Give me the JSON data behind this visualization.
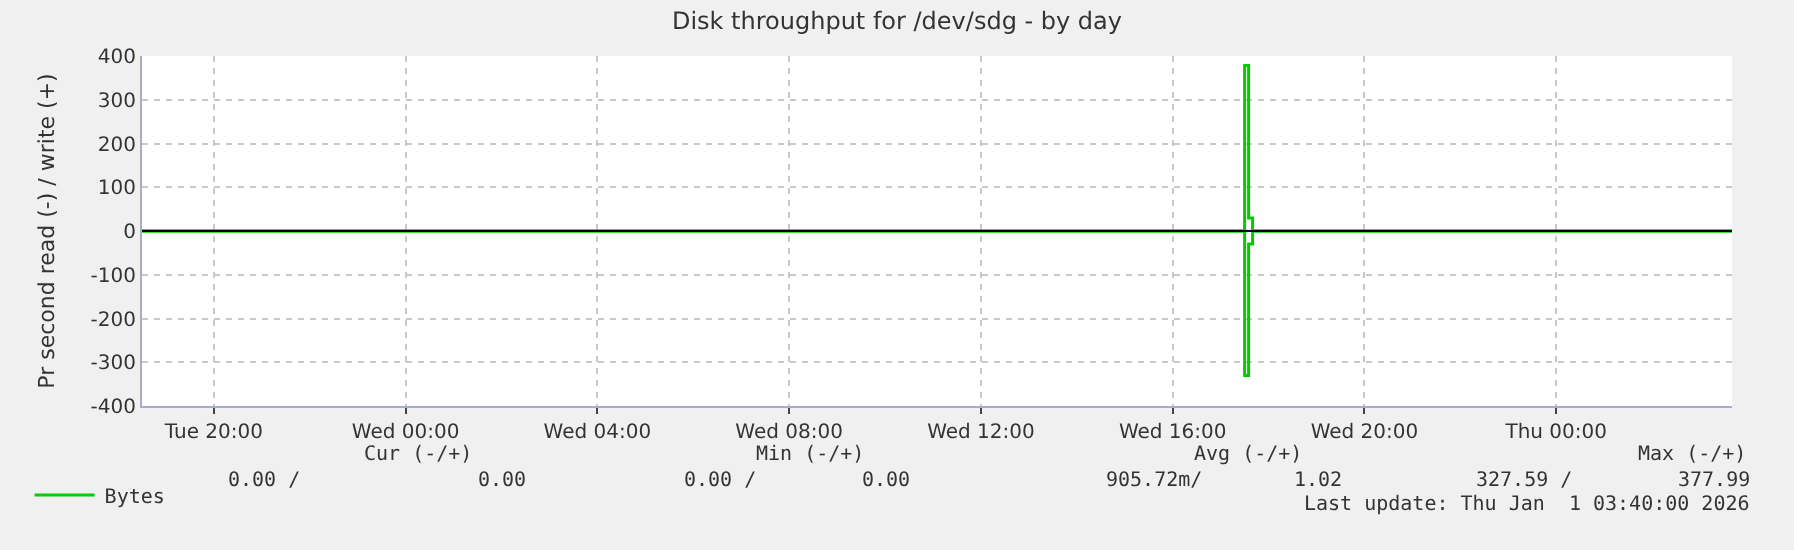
{
  "chart_data": {
    "type": "step",
    "title": "Disk throughput for /dev/sdg - by day",
    "ylabel": "Pr second read (-) / write (+)",
    "xlim": [
      "2025-12-30T18:30",
      "2026-01-01T03:40"
    ],
    "xticks": [
      {
        "value": "2025-12-30T20:00",
        "label": "Tue 20:00"
      },
      {
        "value": "2025-12-31T00:00",
        "label": "Wed 00:00"
      },
      {
        "value": "2025-12-31T04:00",
        "label": "Wed 04:00"
      },
      {
        "value": "2025-12-31T08:00",
        "label": "Wed 08:00"
      },
      {
        "value": "2025-12-31T12:00",
        "label": "Wed 12:00"
      },
      {
        "value": "2025-12-31T16:00",
        "label": "Wed 16:00"
      },
      {
        "value": "2025-12-31T20:00",
        "label": "Wed 20:00"
      },
      {
        "value": "2026-01-01T00:00",
        "label": "Thu 00:00"
      }
    ],
    "ylim": [
      -400,
      400
    ],
    "yticks": [
      -400,
      -300,
      -200,
      -100,
      0,
      100,
      200,
      300,
      400
    ],
    "series": [
      {
        "name": "Bytes",
        "color": "#00cc00",
        "x": [
          "2025-12-30T18:30",
          "2025-12-31T17:25",
          "2025-12-31T17:30",
          "2025-12-31T17:35",
          "2025-12-31T17:40",
          "2026-01-01T03:40"
        ],
        "values": [
          0,
          0,
          378,
          30,
          0,
          0
        ]
      },
      {
        "color": "#00cc00",
        "x": [
          "2025-12-30T18:30",
          "2025-12-31T17:25",
          "2025-12-31T17:30",
          "2025-12-31T17:35",
          "2025-12-31T17:40",
          "2026-01-01T03:40"
        ],
        "values": [
          0,
          0,
          -330,
          -30,
          0,
          0
        ]
      }
    ],
    "ref_lines": [
      {
        "axis": "y",
        "value": 0,
        "color": "#000000"
      }
    ],
    "grid": true,
    "legend": "bottom left",
    "annotations": [
      "Cur (-/+)",
      "Min (-/+)",
      "Avg (-/+)",
      "Max (-/+)",
      "0.00 /",
      "0.00",
      "0.00 /",
      "0.00",
      "905.72m/",
      "1.02",
      "327.59 /",
      "377.99",
      "Last update: Thu Jan  1 03:40:00 2026"
    ]
  }
}
